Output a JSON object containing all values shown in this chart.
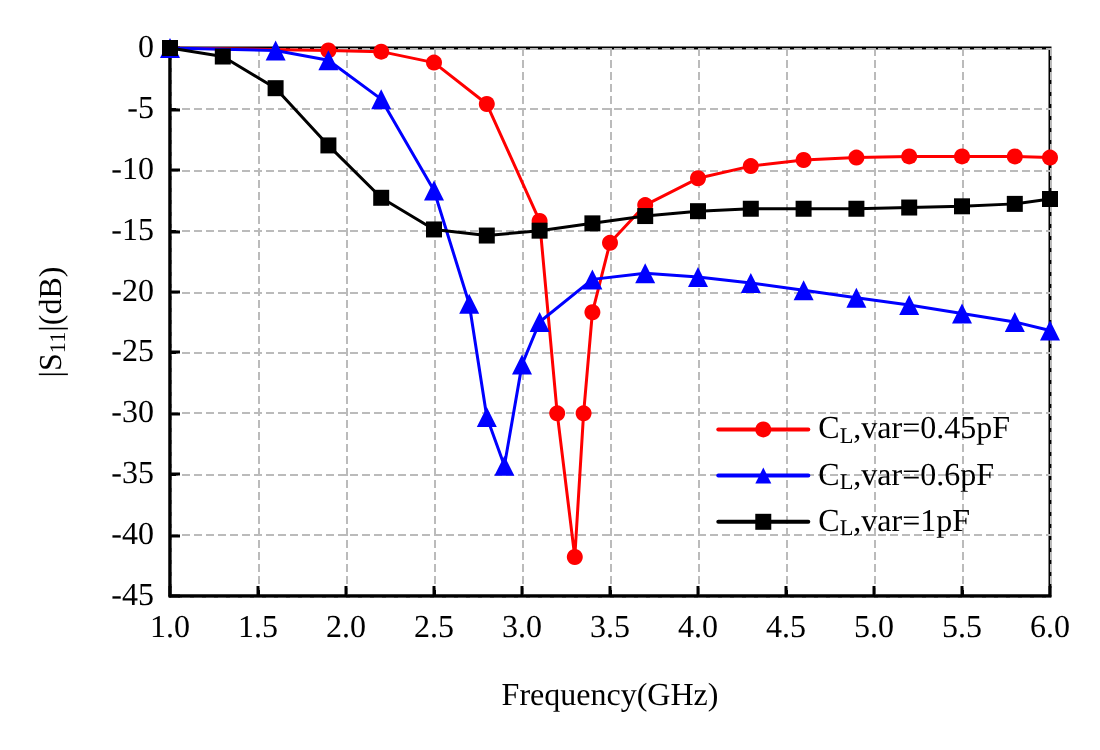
{
  "chart_data": {
    "type": "line",
    "xlabel": "Frequency(GHz)",
    "ylabel": "|S$_{11}$|(dB)",
    "xlim": [
      1.0,
      6.0
    ],
    "xticks": [
      {
        "value": 1.0,
        "label": "1.0"
      },
      {
        "value": 1.5,
        "label": "1.5"
      },
      {
        "value": 2.0,
        "label": "2.0"
      },
      {
        "value": 2.5,
        "label": "2.5"
      },
      {
        "value": 3.0,
        "label": "3.0"
      },
      {
        "value": 3.5,
        "label": "3.5"
      },
      {
        "value": 4.0,
        "label": "4.0"
      },
      {
        "value": 4.5,
        "label": "4.5"
      },
      {
        "value": 5.0,
        "label": "5.0"
      },
      {
        "value": 5.5,
        "label": "5.5"
      },
      {
        "value": 6.0,
        "label": "6.0"
      }
    ],
    "ylim": [
      -45,
      0
    ],
    "yticks": [
      -45,
      -40,
      -35,
      -30,
      -25,
      -20,
      -15,
      -10,
      -5,
      0
    ],
    "grid": true,
    "legend": "bottom right",
    "line_style": "solid",
    "series": [
      {
        "name": "C$_{L}$,var=0.45pF",
        "color": "#ff0000",
        "marker": "circle",
        "x": [
          1.0,
          1.9,
          2.2,
          2.5,
          2.8,
          3.1,
          3.2,
          3.3,
          3.35,
          3.4,
          3.5,
          3.7,
          4.0,
          4.3,
          4.6,
          4.9,
          5.2,
          5.5,
          5.8,
          6.0
        ],
        "values": [
          0,
          -0.2,
          -0.3,
          -1.2,
          -4.6,
          -14.2,
          -30,
          -41.8,
          -30,
          -21.7,
          -16,
          -12.9,
          -10.7,
          -9.7,
          -9.2,
          -9.0,
          -8.9,
          -8.9,
          -8.9,
          -9.0
        ]
      },
      {
        "name": "C$_{L}$,var=0.6pF",
        "color": "#0000ff",
        "marker": "triangle",
        "x": [
          1.0,
          1.6,
          1.9,
          2.2,
          2.5,
          2.7,
          2.8,
          2.9,
          3.0,
          3.1,
          3.4,
          3.7,
          4.0,
          4.3,
          4.6,
          4.9,
          5.2,
          5.5,
          5.8,
          6.0
        ],
        "values": [
          0,
          -0.2,
          -1.0,
          -4.2,
          -11.7,
          -21,
          -30.3,
          -34.3,
          -26,
          -22.5,
          -19,
          -18.5,
          -18.8,
          -19.3,
          -19.9,
          -20.5,
          -21.1,
          -21.8,
          -22.5,
          -23.2
        ]
      },
      {
        "name": "C$_{L}$,var=1pF",
        "color": "#000000",
        "marker": "square",
        "x": [
          1.0,
          1.3,
          1.6,
          1.9,
          2.2,
          2.5,
          2.8,
          3.1,
          3.4,
          3.7,
          4.0,
          4.3,
          4.6,
          4.9,
          5.2,
          5.5,
          5.8,
          6.0
        ],
        "values": [
          0,
          -0.7,
          -3.3,
          -8,
          -12.3,
          -14.9,
          -15.4,
          -15,
          -14.4,
          -13.8,
          -13.4,
          -13.2,
          -13.2,
          -13.2,
          -13.1,
          -13,
          -12.8,
          -12.4
        ]
      }
    ]
  }
}
